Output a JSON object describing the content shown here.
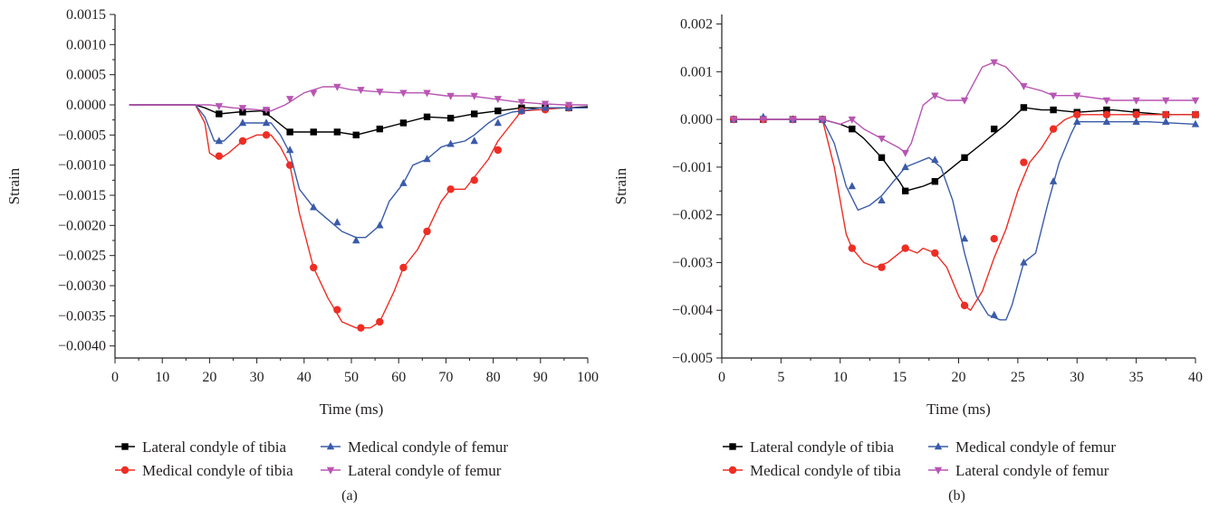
{
  "colors": {
    "lateral_tibia": "#000000",
    "medial_tibia": "#ee2d24",
    "medial_femur": "#3a5ba9",
    "lateral_femur": "#b855b3",
    "axis": "#231f20"
  },
  "chart_data": [
    {
      "type": "line",
      "panel_label": "(a)",
      "xlabel": "Time (ms)",
      "ylabel": "Strain",
      "xlim": [
        0,
        100
      ],
      "ylim": [
        -0.0042,
        0.0015
      ],
      "xticks": [
        0,
        10,
        20,
        30,
        40,
        50,
        60,
        70,
        80,
        90,
        100
      ],
      "xtick_labels": [
        "0",
        "10",
        "20",
        "30",
        "40",
        "50",
        "60",
        "70",
        "80",
        "90",
        "100"
      ],
      "yticks": [
        0.0015,
        0.001,
        0.0005,
        0,
        -0.0005,
        -0.001,
        -0.0015,
        -0.002,
        -0.0025,
        -0.003,
        -0.0035,
        -0.004
      ],
      "ytick_labels": [
        "0.0015",
        "0.0010",
        "0.0005",
        "0.0000",
        "−0.0005",
        "−0.0010",
        "−0.0015",
        "−0.0020",
        "−0.0025",
        "−0.0030",
        "−0.0035",
        "−0.0040"
      ],
      "grid": false,
      "legend_position": "bottom",
      "series": [
        {
          "name": "Lateral condyle of tibia",
          "color": "#000000",
          "marker": "square",
          "x": [
            3,
            10,
            17,
            19,
            22,
            26,
            31,
            33,
            37,
            42,
            47,
            51,
            56,
            61,
            66,
            71,
            76,
            81,
            86,
            91,
            96,
            100
          ],
          "y": [
            0,
            0,
            0,
            -5e-05,
            -0.00015,
            -0.00012,
            -0.0001,
            -0.0002,
            -0.00045,
            -0.00045,
            -0.00045,
            -0.0005,
            -0.0004,
            -0.0003,
            -0.0002,
            -0.00022,
            -0.00015,
            -0.0001,
            -5e-05,
            -5e-05,
            -5e-05,
            -3e-05
          ],
          "marker_x": [
            22,
            27,
            32,
            37,
            42,
            47,
            51,
            56,
            61,
            66,
            71,
            76,
            81,
            86,
            91,
            96
          ],
          "marker_y": [
            -0.00015,
            -0.00012,
            -0.00012,
            -0.00045,
            -0.00045,
            -0.00045,
            -0.0005,
            -0.0004,
            -0.0003,
            -0.0002,
            -0.00022,
            -0.00015,
            -0.0001,
            -5e-05,
            -5e-05,
            -5e-05
          ]
        },
        {
          "name": "Medical condyle of tibia",
          "color": "#ee2d24",
          "marker": "circle",
          "x": [
            3,
            10,
            17,
            19,
            20,
            22,
            24,
            27,
            30,
            33,
            35,
            37,
            39,
            42,
            45,
            48,
            51,
            54,
            56,
            59,
            61,
            64,
            66,
            69,
            71,
            74,
            76,
            79,
            81,
            84,
            86,
            90,
            95,
            100
          ],
          "y": [
            0,
            0,
            0,
            -0.0003,
            -0.0008,
            -0.0009,
            -0.0008,
            -0.0006,
            -0.0005,
            -0.0005,
            -0.0007,
            -0.001,
            -0.0018,
            -0.0027,
            -0.0032,
            -0.0036,
            -0.0037,
            -0.0037,
            -0.0036,
            -0.0031,
            -0.0027,
            -0.0024,
            -0.0021,
            -0.0016,
            -0.0014,
            -0.0014,
            -0.0012,
            -0.0009,
            -0.0006,
            -0.0003,
            -0.0001,
            -8e-05,
            -5e-05,
            -5e-05
          ],
          "marker_x": [
            22,
            27,
            32,
            37,
            42,
            47,
            52,
            56,
            61,
            66,
            71,
            76,
            81,
            86,
            91,
            96
          ],
          "marker_y": [
            -0.00085,
            -0.0006,
            -0.0005,
            -0.001,
            -0.0027,
            -0.0034,
            -0.0037,
            -0.0036,
            -0.0027,
            -0.0021,
            -0.0014,
            -0.00125,
            -0.00075,
            -0.0001,
            -8e-05,
            -5e-05
          ],
          "legend_marker": "circle"
        },
        {
          "name": "Medical condyle of femur",
          "color": "#3a5ba9",
          "marker": "triangle-up",
          "x": [
            3,
            10,
            17,
            19,
            21,
            23,
            25,
            27,
            30,
            33,
            35,
            37,
            39,
            42,
            45,
            48,
            51,
            53,
            56,
            58,
            61,
            63,
            66,
            69,
            71,
            74,
            76,
            79,
            81,
            84,
            86,
            90,
            95,
            100
          ],
          "y": [
            0,
            0,
            0,
            -0.0002,
            -0.0006,
            -0.0006,
            -0.00045,
            -0.0003,
            -0.0003,
            -0.0003,
            -0.0005,
            -0.0008,
            -0.0014,
            -0.0017,
            -0.0019,
            -0.0021,
            -0.0022,
            -0.0022,
            -0.002,
            -0.0016,
            -0.0013,
            -0.001,
            -0.0009,
            -0.0007,
            -0.00065,
            -0.0006,
            -0.0005,
            -0.0003,
            -0.0002,
            -0.00012,
            -0.0001,
            -5e-05,
            -5e-05,
            -5e-05
          ],
          "marker_x": [
            22,
            27,
            32,
            37,
            42,
            47,
            51,
            56,
            61,
            66,
            71,
            76,
            81,
            86,
            91,
            96
          ],
          "marker_y": [
            -0.0006,
            -0.0003,
            -0.0003,
            -0.00075,
            -0.0017,
            -0.00195,
            -0.00225,
            -0.002,
            -0.0013,
            -0.0009,
            -0.00065,
            -0.0006,
            -0.0003,
            -0.0001,
            -5e-05,
            -5e-05
          ]
        },
        {
          "name": "Lateral condyle of femur",
          "color": "#b855b3",
          "marker": "triangle-down",
          "x": [
            3,
            10,
            17,
            20,
            25,
            30,
            33,
            36,
            40,
            44,
            47,
            50,
            55,
            60,
            65,
            70,
            75,
            80,
            85,
            90,
            95,
            100
          ],
          "y": [
            0,
            0,
            0,
            0,
            -5e-05,
            -8e-05,
            -0.0001,
            0,
            0.0002,
            0.0003,
            0.0003,
            0.00025,
            0.00022,
            0.0002,
            0.0002,
            0.00015,
            0.00015,
            0.0001,
            5e-05,
            2e-05,
            0,
            0
          ],
          "marker_x": [
            22,
            27,
            32,
            37,
            42,
            47,
            52,
            56,
            61,
            66,
            71,
            76,
            81,
            86,
            91,
            96
          ],
          "marker_y": [
            -2e-05,
            -5e-05,
            -8e-05,
            0.0001,
            0.0002,
            0.0003,
            0.00025,
            0.00022,
            0.0002,
            0.0002,
            0.00015,
            0.00015,
            0.0001,
            5e-05,
            2e-05,
            0
          ]
        }
      ]
    },
    {
      "type": "line",
      "panel_label": "(b)",
      "xlabel": "Time (ms)",
      "ylabel": "Strain",
      "xlim": [
        0,
        40
      ],
      "ylim": [
        -0.005,
        0.0022
      ],
      "xticks": [
        0,
        5,
        10,
        15,
        20,
        25,
        30,
        35,
        40
      ],
      "xtick_labels": [
        "0",
        "5",
        "10",
        "15",
        "20",
        "25",
        "30",
        "35",
        "40"
      ],
      "yticks": [
        0.002,
        0.001,
        0,
        -0.001,
        -0.002,
        -0.003,
        -0.004,
        -0.005
      ],
      "ytick_labels": [
        "0.002",
        "0.001",
        "0.000",
        "−0.001",
        "−0.002",
        "−0.003",
        "−0.004",
        "−0.005"
      ],
      "grid": false,
      "legend_position": "bottom",
      "series": [
        {
          "name": "Lateral condyle of tibia",
          "color": "#000000",
          "marker": "square",
          "x": [
            1,
            4,
            7,
            8.5,
            10,
            11,
            12,
            13.5,
            15,
            15.5,
            17,
            18,
            19,
            20.5,
            22,
            24,
            25.5,
            27,
            28,
            30,
            33,
            35,
            37.5,
            40
          ],
          "y": [
            0,
            0,
            0,
            0,
            -0.0001,
            -0.0002,
            -0.0004,
            -0.0008,
            -0.0013,
            -0.0015,
            -0.0014,
            -0.0013,
            -0.0011,
            -0.0008,
            -0.0005,
            -0.0001,
            0.00025,
            0.0002,
            0.0002,
            0.00015,
            0.0002,
            0.00015,
            0.0001,
            0.0001
          ],
          "marker_x": [
            1,
            3.5,
            6,
            8.5,
            11,
            13.5,
            15.5,
            18,
            20.5,
            23,
            25.5,
            28,
            30,
            32.5,
            35,
            37.5,
            40
          ],
          "marker_y": [
            0,
            0,
            0,
            0,
            -0.0002,
            -0.0008,
            -0.0015,
            -0.0013,
            -0.0008,
            -0.0002,
            0.00025,
            0.0002,
            0.00015,
            0.0002,
            0.00015,
            0.0001,
            0.0001
          ]
        },
        {
          "name": "Medical condyle of tibia",
          "color": "#ee2d24",
          "marker": "circle",
          "x": [
            1,
            4,
            7,
            8.5,
            9.5,
            10.5,
            11,
            12,
            13,
            14,
            15.5,
            16.5,
            17,
            18,
            19,
            20,
            20.5,
            21,
            22,
            23,
            24,
            25,
            26,
            27,
            28,
            29,
            30,
            33,
            36,
            40
          ],
          "y": [
            0,
            0,
            0,
            0,
            -0.001,
            -0.0024,
            -0.0027,
            -0.003,
            -0.0031,
            -0.003,
            -0.0027,
            -0.0028,
            -0.0027,
            -0.0028,
            -0.0031,
            -0.0037,
            -0.0039,
            -0.004,
            -0.0036,
            -0.0029,
            -0.0023,
            -0.0015,
            -0.0009,
            -0.0006,
            -0.0002,
            0,
            0.0001,
            0.0001,
            0.0001,
            0.0001
          ],
          "marker_x": [
            1,
            3.5,
            6,
            8.5,
            11,
            13.5,
            15.5,
            18,
            20.5,
            23,
            25.5,
            28,
            30,
            32.5,
            35,
            37.5,
            40
          ],
          "marker_y": [
            0,
            0,
            0,
            0,
            -0.0027,
            -0.0031,
            -0.0027,
            -0.0028,
            -0.0039,
            -0.0025,
            -0.0009,
            -0.0002,
            0.0001,
            0.0001,
            0.0001,
            0.0001,
            0.0001
          ]
        },
        {
          "name": "Medical condyle of femur",
          "color": "#3a5ba9",
          "marker": "triangle-up",
          "x": [
            1,
            4,
            7,
            8.5,
            9.5,
            10.5,
            11.5,
            12.5,
            13.5,
            14.5,
            15.5,
            16.5,
            17.5,
            18.5,
            19.5,
            20.5,
            21.5,
            22.5,
            23.5,
            24,
            24.5,
            25.5,
            26.5,
            27.5,
            28.5,
            29.5,
            30,
            33,
            36,
            40
          ],
          "y": [
            0,
            0,
            0,
            0,
            -0.0005,
            -0.0014,
            -0.0019,
            -0.0018,
            -0.0016,
            -0.0013,
            -0.001,
            -0.0009,
            -0.0008,
            -0.001,
            -0.0017,
            -0.0028,
            -0.0037,
            -0.0041,
            -0.0042,
            -0.0042,
            -0.0039,
            -0.003,
            -0.0028,
            -0.0018,
            -0.0009,
            -0.0003,
            -5e-05,
            -5e-05,
            -5e-05,
            -0.0001
          ],
          "marker_x": [
            1,
            3.5,
            6,
            8.5,
            11,
            13.5,
            15.5,
            18,
            20.5,
            23,
            25.5,
            28,
            30,
            32.5,
            35,
            37.5,
            40
          ],
          "marker_y": [
            0,
            5e-05,
            0,
            0,
            -0.0014,
            -0.0017,
            -0.001,
            -0.00085,
            -0.0025,
            -0.0041,
            -0.003,
            -0.0013,
            -5e-05,
            -5e-05,
            -5e-05,
            -5e-05,
            -0.0001
          ]
        },
        {
          "name": "Lateral condyle of femur",
          "color": "#b855b3",
          "marker": "triangle-down",
          "x": [
            1,
            4,
            7,
            8.5,
            10,
            11,
            12,
            13.5,
            15,
            15.5,
            16,
            17,
            18,
            19,
            20.5,
            22,
            23,
            24,
            25.5,
            27,
            28,
            30,
            33,
            35,
            37.5,
            40
          ],
          "y": [
            0,
            0,
            0,
            0,
            -0.0001,
            0,
            -0.0002,
            -0.0004,
            -0.0006,
            -0.0007,
            -0.0005,
            0.0003,
            0.0005,
            0.0004,
            0.0004,
            0.0011,
            0.0012,
            0.0011,
            0.0007,
            0.0006,
            0.0005,
            0.0005,
            0.0004,
            0.0004,
            0.0004,
            0.0004
          ],
          "marker_x": [
            1,
            3.5,
            6,
            8.5,
            11,
            13.5,
            15.5,
            18,
            20.5,
            23,
            25.5,
            28,
            30,
            32.5,
            35,
            37.5,
            40
          ],
          "marker_y": [
            0,
            0,
            0,
            0,
            0,
            -0.0004,
            -0.0007,
            0.0005,
            0.0004,
            0.0012,
            0.0007,
            0.0005,
            0.0005,
            0.0004,
            0.0004,
            0.0004,
            0.0004
          ]
        }
      ]
    }
  ]
}
